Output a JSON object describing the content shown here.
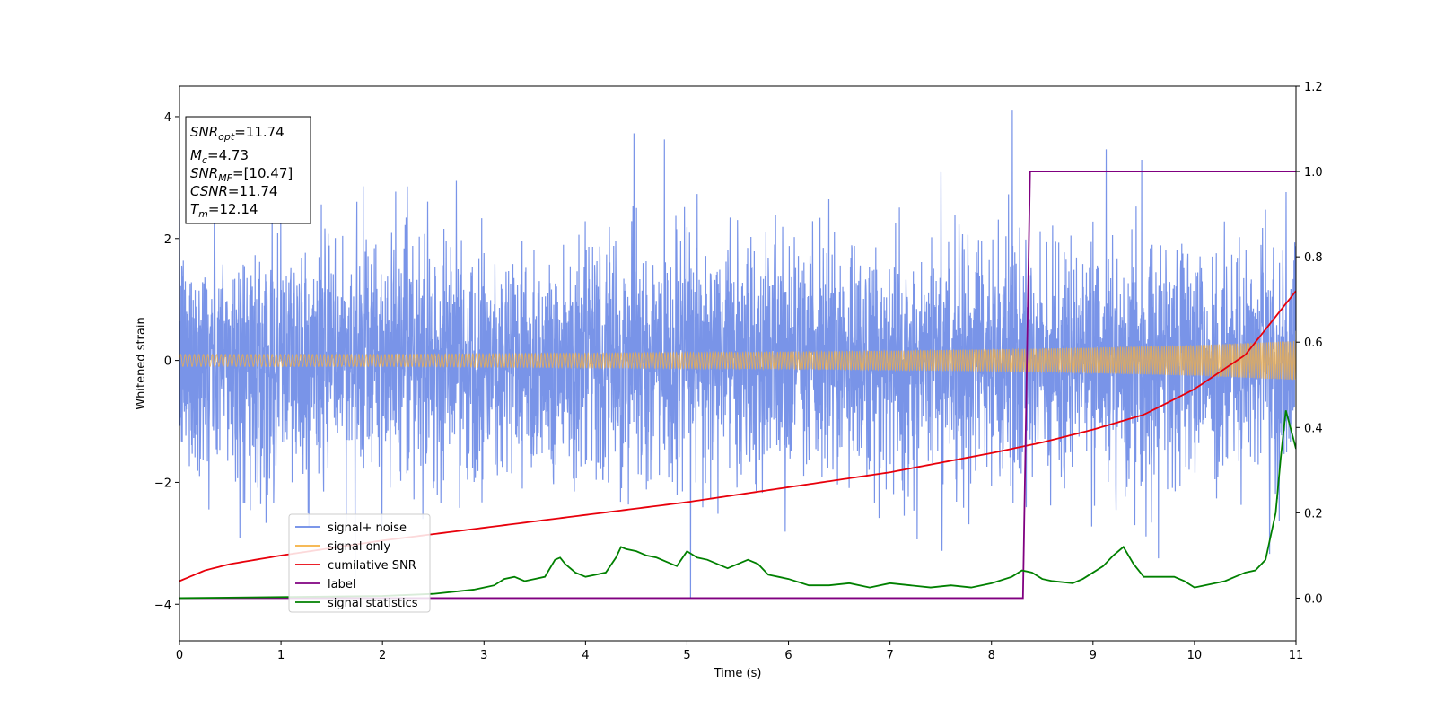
{
  "chart_data": {
    "type": "line",
    "xlabel": "Time (s)",
    "ylabel": "Whitened strain",
    "xlim": [
      0,
      11
    ],
    "ylim": [
      -4.6,
      4.5
    ],
    "y2lim": [
      -0.1,
      1.2
    ],
    "x_ticks": [
      "0",
      "1",
      "2",
      "3",
      "4",
      "5",
      "6",
      "7",
      "8",
      "9",
      "10",
      "11"
    ],
    "y_ticks": [
      "−4",
      "−2",
      "0",
      "2",
      "4"
    ],
    "y2_ticks": [
      "0.0",
      "0.2",
      "0.4",
      "0.6",
      "0.8",
      "1.0",
      "1.2"
    ],
    "grid": false,
    "legend_location": "lower-left",
    "annotation": [
      {
        "name": "SNR",
        "sub": "opt",
        "value": "=11.74"
      },
      {
        "name": "M",
        "sub": "c",
        "value": "=4.73"
      },
      {
        "name": "SNR",
        "sub": "MF",
        "value": "=[10.47]"
      },
      {
        "name": "CSNR",
        "sub": "",
        "value": "=11.74"
      },
      {
        "name": "T",
        "sub": "m",
        "value": "=12.14"
      }
    ],
    "series": [
      {
        "name": "signal+ noise",
        "axis": "left",
        "color": "#6a88e6",
        "description_envelope": {
          "typical_min": -2.2,
          "typical_max": 2.4,
          "peak_max": 4.1,
          "peak_min": -4.15
        }
      },
      {
        "name": "signal only",
        "axis": "left",
        "color": "#f5b041",
        "amplitude_envelope": {
          "x": [
            0,
            2,
            4,
            6,
            8,
            9,
            10,
            11
          ],
          "amp": [
            0.1,
            0.1,
            0.12,
            0.14,
            0.18,
            0.21,
            0.25,
            0.32
          ]
        }
      },
      {
        "name": "cumilative SNR",
        "axis": "right",
        "color": "#e8000b",
        "x": [
          0,
          0.25,
          0.5,
          1,
          2,
          3,
          4,
          5,
          6,
          7,
          8,
          8.5,
          9,
          9.5,
          10,
          10.5,
          11
        ],
        "y": [
          0.04,
          0.065,
          0.08,
          0.1,
          0.135,
          0.165,
          0.195,
          0.225,
          0.26,
          0.295,
          0.34,
          0.365,
          0.395,
          0.43,
          0.49,
          0.57,
          0.72
        ]
      },
      {
        "name": "label",
        "axis": "right",
        "color": "#800080",
        "x": [
          0,
          8.31,
          8.38,
          11
        ],
        "y": [
          0.0,
          0.0,
          1.0,
          1.0
        ]
      },
      {
        "name": "signal statistics",
        "axis": "right",
        "color": "#008000",
        "x": [
          0,
          2,
          2.5,
          2.9,
          3.0,
          3.1,
          3.2,
          3.3,
          3.4,
          3.5,
          3.6,
          3.7,
          3.75,
          3.8,
          3.9,
          4.0,
          4.1,
          4.2,
          4.3,
          4.35,
          4.4,
          4.5,
          4.6,
          4.7,
          4.8,
          4.9,
          5.0,
          5.1,
          5.2,
          5.4,
          5.5,
          5.6,
          5.7,
          5.8,
          5.9,
          6.0,
          6.2,
          6.4,
          6.6,
          6.8,
          7.0,
          7.2,
          7.4,
          7.6,
          7.8,
          8.0,
          8.2,
          8.3,
          8.4,
          8.5,
          8.6,
          8.8,
          8.9,
          9.0,
          9.1,
          9.2,
          9.3,
          9.4,
          9.5,
          9.6,
          9.8,
          9.9,
          10.0,
          10.1,
          10.2,
          10.3,
          10.4,
          10.5,
          10.6,
          10.7,
          10.8,
          10.85,
          10.9,
          11.0
        ],
        "y": [
          0.0,
          0.005,
          0.01,
          0.02,
          0.025,
          0.03,
          0.045,
          0.05,
          0.04,
          0.045,
          0.05,
          0.09,
          0.095,
          0.08,
          0.06,
          0.05,
          0.055,
          0.06,
          0.095,
          0.12,
          0.115,
          0.11,
          0.1,
          0.095,
          0.085,
          0.075,
          0.11,
          0.095,
          0.09,
          0.07,
          0.08,
          0.09,
          0.08,
          0.055,
          0.05,
          0.045,
          0.03,
          0.03,
          0.035,
          0.025,
          0.035,
          0.03,
          0.025,
          0.03,
          0.025,
          0.035,
          0.05,
          0.065,
          0.06,
          0.045,
          0.04,
          0.035,
          0.045,
          0.06,
          0.075,
          0.1,
          0.12,
          0.08,
          0.05,
          0.05,
          0.05,
          0.04,
          0.025,
          0.03,
          0.035,
          0.04,
          0.05,
          0.06,
          0.065,
          0.09,
          0.2,
          0.33,
          0.44,
          0.35
        ]
      }
    ]
  }
}
